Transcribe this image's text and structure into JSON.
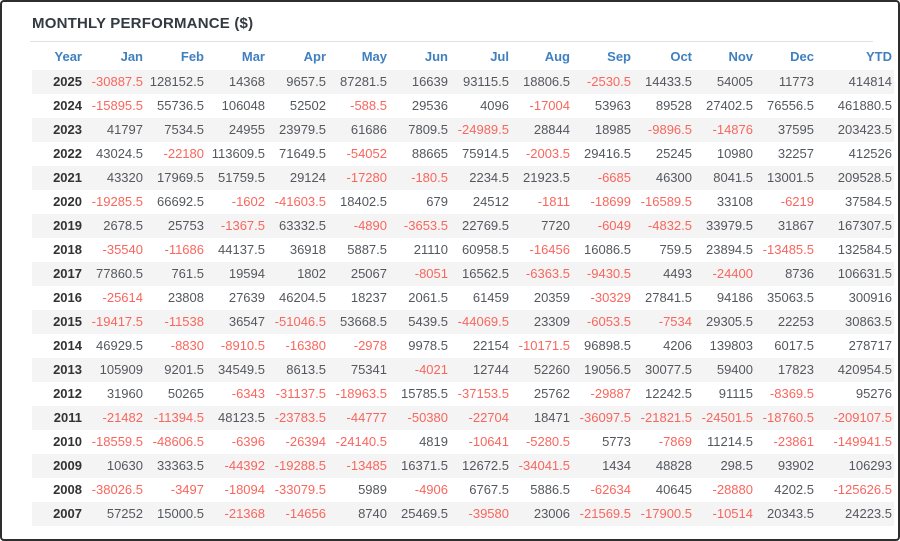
{
  "title": "MONTHLY PERFORMANCE ($)",
  "colors": {
    "header_blue": "#4080c0",
    "negative_red": "#f9665e",
    "value_gray": "#54585e",
    "year_dark": "#333333",
    "stripe_gray": "#f4f4f4",
    "frame_border": "#2e2e2e"
  },
  "table": {
    "columns": [
      "Year",
      "Jan",
      "Feb",
      "Mar",
      "Apr",
      "May",
      "Jun",
      "Jul",
      "Aug",
      "Sep",
      "Oct",
      "Nov",
      "Dec",
      "YTD"
    ],
    "rows": [
      {
        "year": "2025",
        "values": [
          "-30887.5",
          "128152.5",
          "14368",
          "9657.5",
          "87281.5",
          "16639",
          "93115.5",
          "18806.5",
          "-2530.5",
          "14433.5",
          "54005",
          "11773",
          "414814"
        ]
      },
      {
        "year": "2024",
        "values": [
          "-15895.5",
          "55736.5",
          "106048",
          "52502",
          "-588.5",
          "29536",
          "4096",
          "-17004",
          "53963",
          "89528",
          "27402.5",
          "76556.5",
          "461880.5"
        ]
      },
      {
        "year": "2023",
        "values": [
          "41797",
          "7534.5",
          "24955",
          "23979.5",
          "61686",
          "7809.5",
          "-24989.5",
          "28844",
          "18985",
          "-9896.5",
          "-14876",
          "37595",
          "203423.5"
        ]
      },
      {
        "year": "2022",
        "values": [
          "43024.5",
          "-22180",
          "113609.5",
          "71649.5",
          "-54052",
          "88665",
          "75914.5",
          "-2003.5",
          "29416.5",
          "25245",
          "10980",
          "32257",
          "412526"
        ]
      },
      {
        "year": "2021",
        "values": [
          "43320",
          "17969.5",
          "51759.5",
          "29124",
          "-17280",
          "-180.5",
          "2234.5",
          "21923.5",
          "-6685",
          "46300",
          "8041.5",
          "13001.5",
          "209528.5"
        ]
      },
      {
        "year": "2020",
        "values": [
          "-19285.5",
          "66692.5",
          "-1602",
          "-41603.5",
          "18402.5",
          "679",
          "24512",
          "-1811",
          "-18699",
          "-16589.5",
          "33108",
          "-6219",
          "37584.5"
        ]
      },
      {
        "year": "2019",
        "values": [
          "2678.5",
          "25753",
          "-1367.5",
          "63332.5",
          "-4890",
          "-3653.5",
          "22769.5",
          "7720",
          "-6049",
          "-4832.5",
          "33979.5",
          "31867",
          "167307.5"
        ]
      },
      {
        "year": "2018",
        "values": [
          "-35540",
          "-11686",
          "44137.5",
          "36918",
          "5887.5",
          "21110",
          "60958.5",
          "-16456",
          "16086.5",
          "759.5",
          "23894.5",
          "-13485.5",
          "132584.5"
        ]
      },
      {
        "year": "2017",
        "values": [
          "77860.5",
          "761.5",
          "19594",
          "1802",
          "25067",
          "-8051",
          "16562.5",
          "-6363.5",
          "-9430.5",
          "4493",
          "-24400",
          "8736",
          "106631.5"
        ]
      },
      {
        "year": "2016",
        "values": [
          "-25614",
          "23808",
          "27639",
          "46204.5",
          "18237",
          "2061.5",
          "61459",
          "20359",
          "-30329",
          "27841.5",
          "94186",
          "35063.5",
          "300916"
        ]
      },
      {
        "year": "2015",
        "values": [
          "-19417.5",
          "-11538",
          "36547",
          "-51046.5",
          "53668.5",
          "5439.5",
          "-44069.5",
          "23309",
          "-6053.5",
          "-7534",
          "29305.5",
          "22253",
          "30863.5"
        ]
      },
      {
        "year": "2014",
        "values": [
          "46929.5",
          "-8830",
          "-8910.5",
          "-16380",
          "-2978",
          "9978.5",
          "22154",
          "-10171.5",
          "96898.5",
          "4206",
          "139803",
          "6017.5",
          "278717"
        ]
      },
      {
        "year": "2013",
        "values": [
          "105909",
          "9201.5",
          "34549.5",
          "8613.5",
          "75341",
          "-4021",
          "12744",
          "52260",
          "19056.5",
          "30077.5",
          "59400",
          "17823",
          "420954.5"
        ]
      },
      {
        "year": "2012",
        "values": [
          "31960",
          "50265",
          "-6343",
          "-31137.5",
          "-18963.5",
          "15785.5",
          "-37153.5",
          "25762",
          "-29887",
          "12242.5",
          "91115",
          "-8369.5",
          "95276"
        ]
      },
      {
        "year": "2011",
        "values": [
          "-21482",
          "-11394.5",
          "48123.5",
          "-23783.5",
          "-44777",
          "-50380",
          "-22704",
          "18471",
          "-36097.5",
          "-21821.5",
          "-24501.5",
          "-18760.5",
          "-209107.5"
        ]
      },
      {
        "year": "2010",
        "values": [
          "-18559.5",
          "-48606.5",
          "-6396",
          "-26394",
          "-24140.5",
          "4819",
          "-10641",
          "-5280.5",
          "5773",
          "-7869",
          "11214.5",
          "-23861",
          "-149941.5"
        ]
      },
      {
        "year": "2009",
        "values": [
          "10630",
          "33363.5",
          "-44392",
          "-19288.5",
          "-13485",
          "16371.5",
          "12672.5",
          "-34041.5",
          "1434",
          "48828",
          "298.5",
          "93902",
          "106293"
        ]
      },
      {
        "year": "2008",
        "values": [
          "-38026.5",
          "-3497",
          "-18094",
          "-33079.5",
          "5989",
          "-4906",
          "6767.5",
          "5886.5",
          "-62634",
          "40645",
          "-28880",
          "4202.5",
          "-125626.5"
        ]
      },
      {
        "year": "2007",
        "values": [
          "57252",
          "15000.5",
          "-21368",
          "-14656",
          "8740",
          "25469.5",
          "-39580",
          "23006",
          "-21569.5",
          "-17900.5",
          "-10514",
          "20343.5",
          "24223.5"
        ]
      }
    ]
  }
}
